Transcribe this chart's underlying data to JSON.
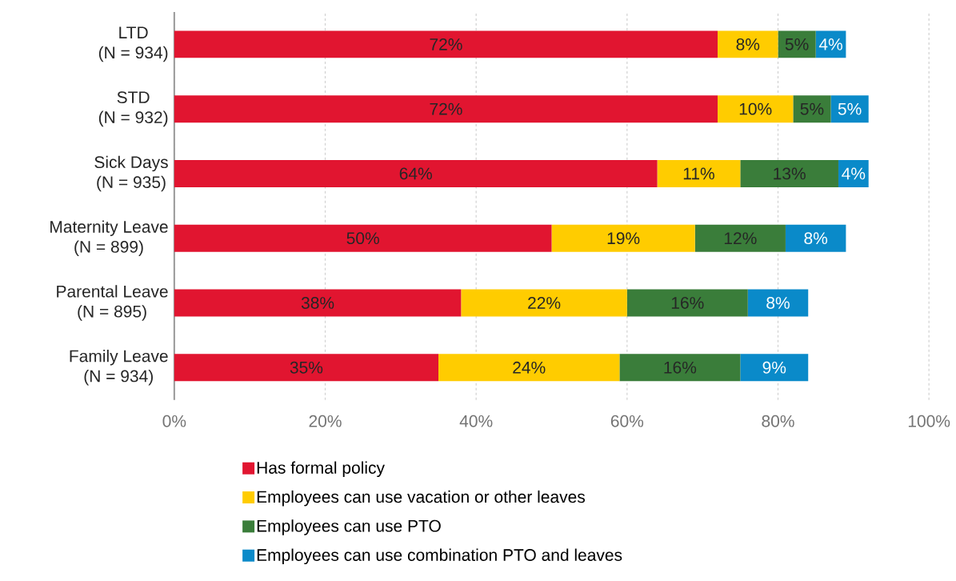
{
  "chart_data": {
    "type": "bar",
    "orientation": "horizontal",
    "stacked": true,
    "categories": [
      "LTD\n(N = 934)",
      "STD\n(N = 932)",
      "Sick Days\n(N = 935)",
      "Maternity Leave\n(N = 899)",
      "Parental Leave\n(N = 895)",
      "Family Leave\n(N = 934)"
    ],
    "series": [
      {
        "name": "Has formal policy",
        "color": "#e11530",
        "values": [
          72,
          72,
          64,
          50,
          38,
          35
        ],
        "value_labels": [
          "72%",
          "72%",
          "64%",
          "50%",
          "38%",
          "35%"
        ]
      },
      {
        "name": "Employees can use vacation or other leaves",
        "color": "#ffcc00",
        "values": [
          8,
          10,
          11,
          19,
          22,
          24
        ],
        "value_labels": [
          "8%",
          "10%",
          "11%",
          "19%",
          "22%",
          "24%"
        ]
      },
      {
        "name": "Employees can use PTO",
        "color": "#3a7d3a",
        "values": [
          5,
          5,
          13,
          12,
          16,
          16
        ],
        "value_labels": [
          "5%",
          "5%",
          "13%",
          "12%",
          "16%",
          "16%"
        ]
      },
      {
        "name": "Employees can use combination PTO and leaves",
        "color": "#0a8ac9",
        "values": [
          4,
          5,
          4,
          8,
          8,
          9
        ],
        "value_labels": [
          "4%",
          "5%",
          "4%",
          "8%",
          "8%",
          "9%"
        ]
      }
    ],
    "xlim": [
      0,
      100
    ],
    "xticks": [
      {
        "value": 0,
        "label": "0%"
      },
      {
        "value": 20,
        "label": "20%"
      },
      {
        "value": 40,
        "label": "40%"
      },
      {
        "value": 60,
        "label": "60%"
      },
      {
        "value": 80,
        "label": "80%"
      },
      {
        "value": 100,
        "label": "100%"
      }
    ],
    "grid": "x",
    "legend": "bottom"
  }
}
